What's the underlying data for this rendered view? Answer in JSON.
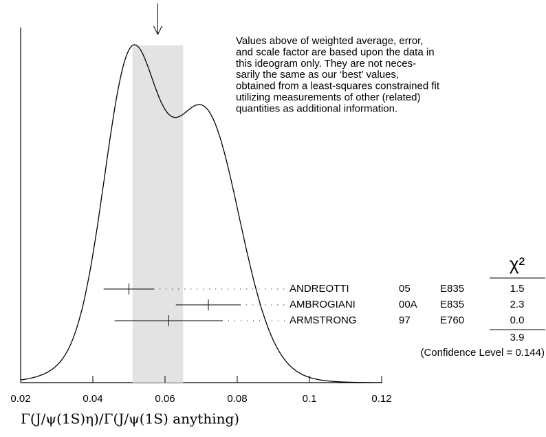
{
  "chart_data": {
    "type": "ideogram",
    "xlim": [
      0.02,
      0.12
    ],
    "xticks": [
      0.02,
      0.04,
      0.06,
      0.08,
      0.1,
      0.12
    ],
    "xlabel": "Γ(J/ψ(1S)η)/Γ(J/ψ(1S) anything)",
    "average": 0.058,
    "error": 0.007,
    "band_color": "#e3e3e3",
    "note": [
      "Values above of weighted average, error,",
      "and scale factor are based upon the data in",
      "this ideogram only.  They are not neces-",
      "sarily the same as our ‘best’ values,",
      "obtained from a least-squares constrained fit",
      "utilizing measurements of other (related)",
      "quantities as additional information."
    ],
    "chi2_header": "χ²",
    "measurements": [
      {
        "name": "ANDREOTTI",
        "year": "05",
        "experiment": "E835",
        "value": 0.05,
        "error": 0.007,
        "chi2": 1.5
      },
      {
        "name": "AMBROGIANI",
        "year": "00A",
        "experiment": "E835",
        "value": 0.072,
        "error": 0.009,
        "chi2": 2.3
      },
      {
        "name": "ARMSTRONG",
        "year": "97",
        "experiment": "E760",
        "value": 0.061,
        "error": 0.015,
        "chi2": {
          "value": 0,
          "label": "0.0"
        }
      }
    ],
    "chi2_total": 3.9,
    "confidence": "(Confidence Level = 0.144)"
  }
}
